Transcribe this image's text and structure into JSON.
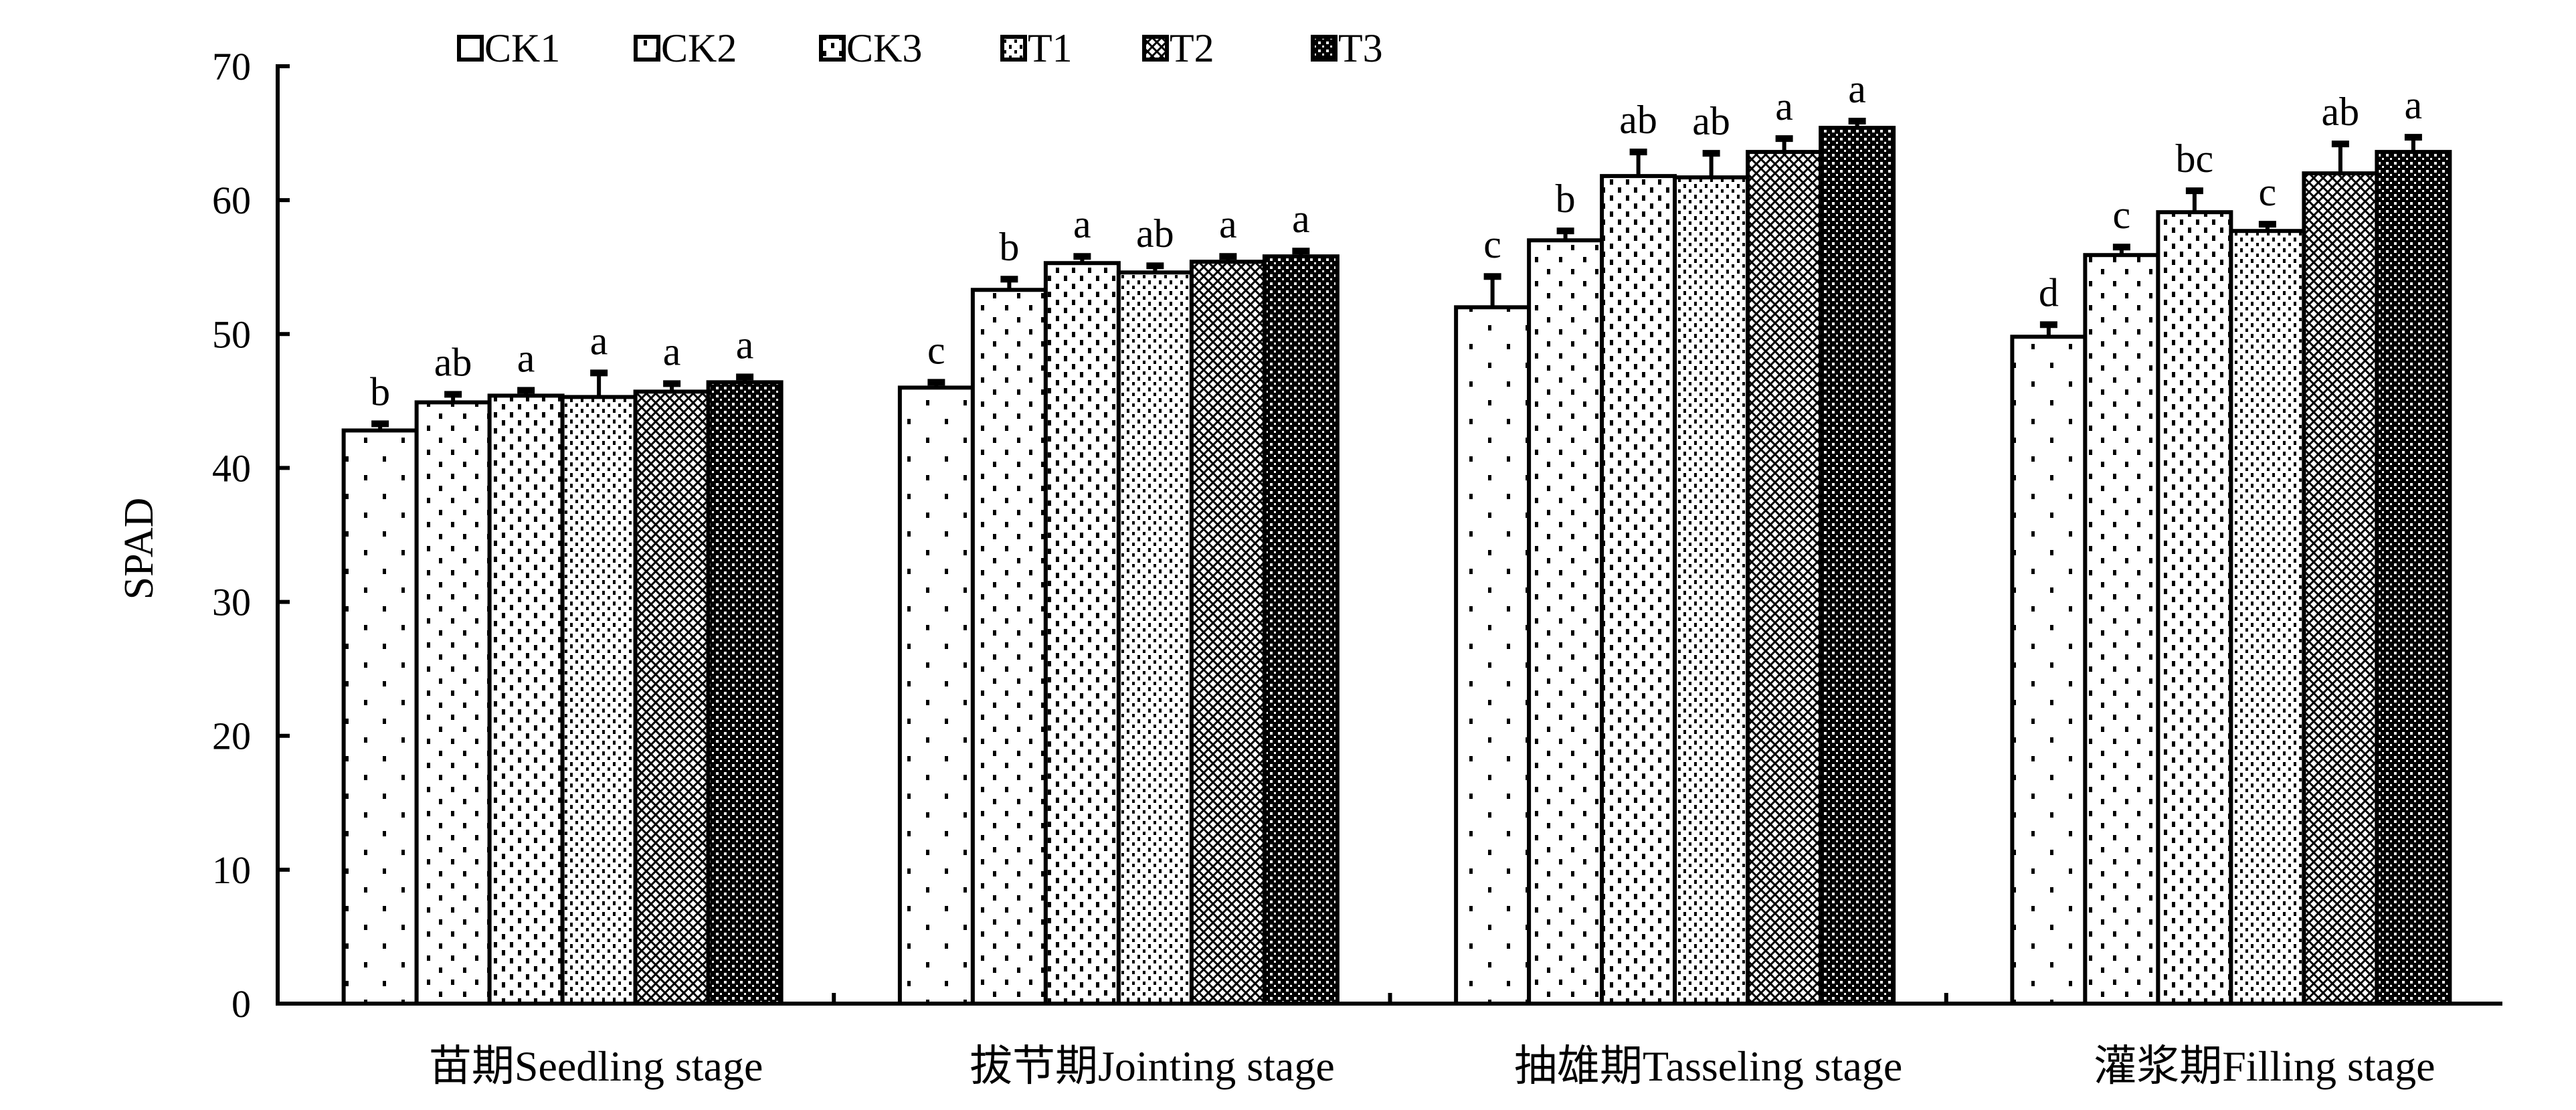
{
  "chart_data": {
    "type": "bar",
    "title": "",
    "xlabel": "",
    "ylabel": "SPAD",
    "ylim": [
      0,
      70
    ],
    "yticks": [
      0,
      10,
      20,
      30,
      40,
      50,
      60,
      70
    ],
    "grid": false,
    "legend_position": "top",
    "categories": [
      "苗期Seedling stage",
      "拔节期Jointing stage",
      "抽雄期Tasseling stage",
      "灌浆期Filling stage"
    ],
    "series": [
      {
        "name": "CK1",
        "values": [
          42.8,
          46.0,
          52.0,
          49.8
        ],
        "errors": [
          0.5,
          0.4,
          2.3,
          0.9
        ],
        "letters": [
          "b",
          "c",
          "c",
          "d"
        ]
      },
      {
        "name": "CK2",
        "values": [
          44.9,
          53.3,
          57.0,
          55.9
        ],
        "errors": [
          0.6,
          0.8,
          0.7,
          0.6
        ],
        "letters": [
          "ab",
          "b",
          "b",
          "c"
        ]
      },
      {
        "name": "CK3",
        "values": [
          45.4,
          55.3,
          61.8,
          59.1
        ],
        "errors": [
          0.4,
          0.5,
          1.8,
          1.6
        ],
        "letters": [
          "a",
          "a",
          "ab",
          "bc"
        ]
      },
      {
        "name": "T1",
        "values": [
          45.3,
          54.6,
          61.7,
          57.7
        ],
        "errors": [
          1.8,
          0.5,
          1.8,
          0.5
        ],
        "letters": [
          "a",
          "ab",
          "ab",
          "c"
        ]
      },
      {
        "name": "T2",
        "values": [
          45.7,
          55.4,
          63.6,
          62.0
        ],
        "errors": [
          0.6,
          0.4,
          1.0,
          2.2
        ],
        "letters": [
          "a",
          "a",
          "a",
          "ab"
        ]
      },
      {
        "name": "T3",
        "values": [
          46.4,
          55.8,
          65.4,
          63.6
        ],
        "errors": [
          0.4,
          0.4,
          0.5,
          1.1
        ],
        "letters": [
          "a",
          "a",
          "a",
          "a"
        ]
      }
    ]
  }
}
